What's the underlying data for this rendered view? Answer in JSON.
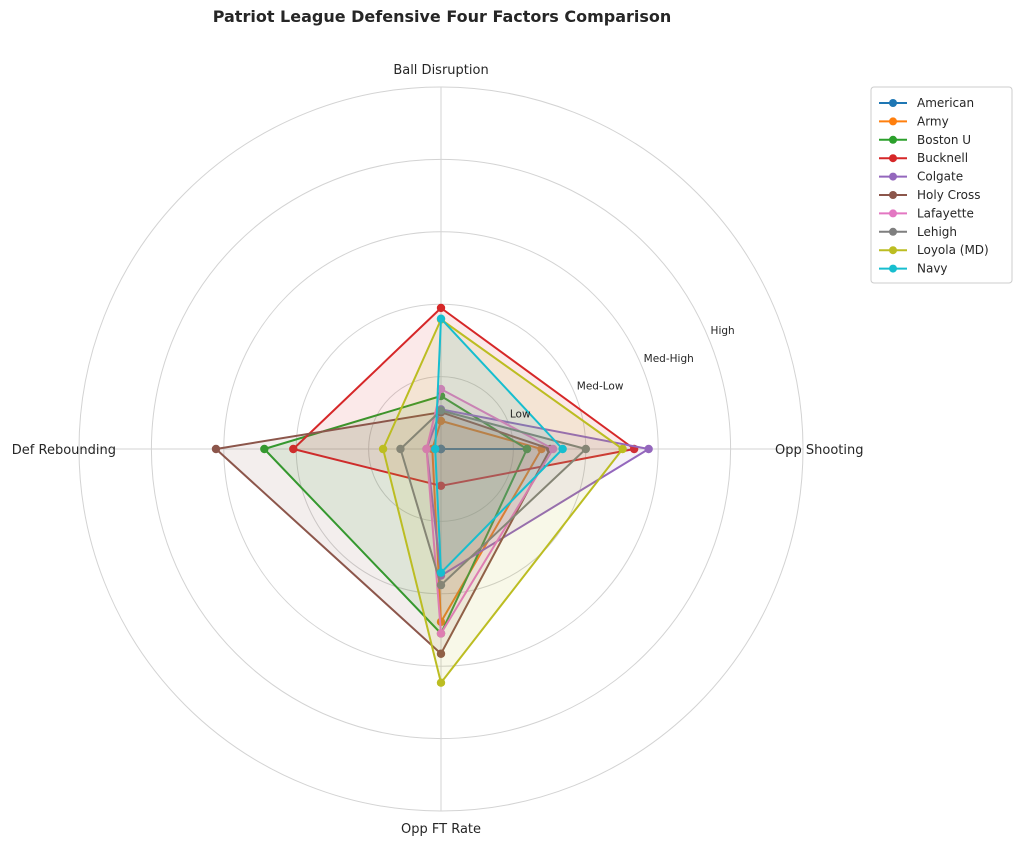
{
  "chart_data": {
    "type": "radar",
    "title": "Patriot League Defensive Four Factors Comparison",
    "axes": [
      "Opp Shooting",
      "Ball Disruption",
      "Def Rebounding",
      "Opp FT Rate"
    ],
    "ring_levels": [
      0.25,
      0.5,
      0.75,
      1.0,
      1.25
    ],
    "ring_labels": [
      "Low",
      "Med-Low",
      "Med-High",
      "High",
      ""
    ],
    "rmax": 1.25,
    "grid": true,
    "legend_position": "top-right",
    "series": [
      {
        "name": "American",
        "color": "#1f77b4",
        "values": [
          0.297,
          0.0,
          0.0,
          0.0
        ]
      },
      {
        "name": "Army",
        "color": "#ff7f0e",
        "values": [
          0.347,
          0.097,
          0.03,
          0.597
        ]
      },
      {
        "name": "Boston U",
        "color": "#2ca02c",
        "values": [
          0.297,
          0.183,
          0.61,
          0.637
        ]
      },
      {
        "name": "Bucknell",
        "color": "#d62728",
        "values": [
          0.667,
          0.487,
          0.51,
          0.127
        ]
      },
      {
        "name": "Colgate",
        "color": "#9467bd",
        "values": [
          0.717,
          0.137,
          0.05,
          0.437
        ]
      },
      {
        "name": "Holy Cross",
        "color": "#8c564b",
        "values": [
          0.377,
          0.127,
          0.777,
          0.707
        ]
      },
      {
        "name": "Lafayette",
        "color": "#e377c2",
        "values": [
          0.387,
          0.207,
          0.05,
          0.637
        ]
      },
      {
        "name": "Lehigh",
        "color": "#7f7f7f",
        "values": [
          0.5,
          0.133,
          0.14,
          0.47
        ]
      },
      {
        "name": "Loyola (MD)",
        "color": "#bcbd22",
        "values": [
          0.627,
          0.447,
          0.2,
          0.807
        ]
      },
      {
        "name": "Navy",
        "color": "#17becf",
        "values": [
          0.42,
          0.45,
          0.02,
          0.427
        ]
      }
    ]
  }
}
